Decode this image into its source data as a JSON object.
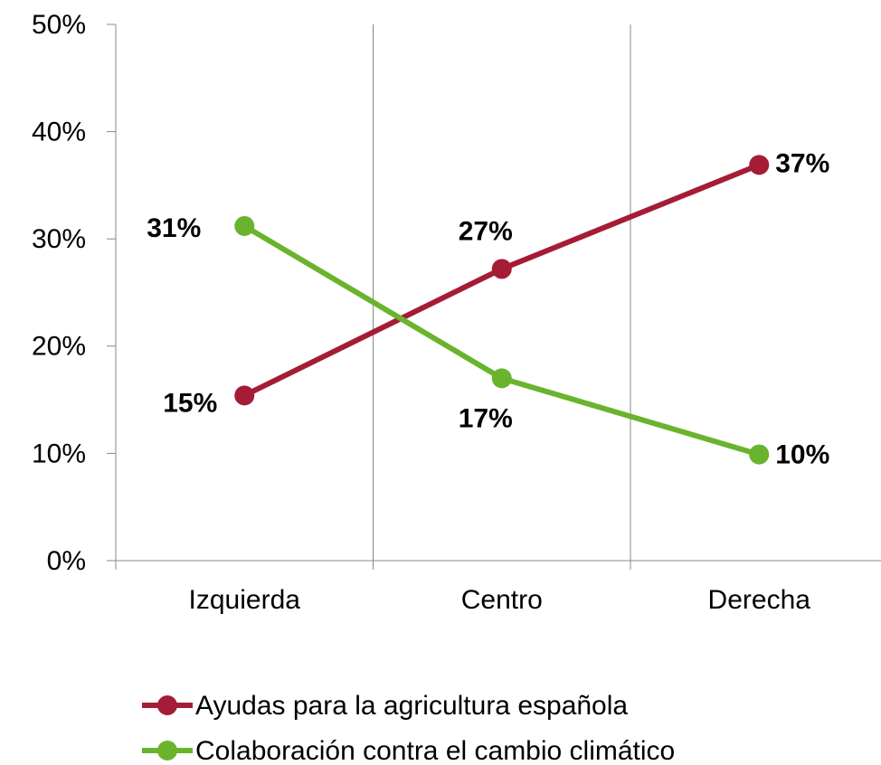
{
  "chart_data": {
    "type": "line",
    "categories": [
      "Izquierda",
      "Centro",
      "Derecha"
    ],
    "series": [
      {
        "name": "Ayudas para la agricultura española",
        "color": "#a51c36",
        "values": [
          15.4,
          27.2,
          36.9
        ],
        "value_labels": [
          "15%",
          "27%",
          "37%"
        ]
      },
      {
        "name": "Colaboración contra el cambio climático",
        "color": "#6ab42d",
        "values": [
          31.2,
          17.0,
          9.9
        ],
        "value_labels": [
          "31%",
          "17%",
          "10%"
        ]
      }
    ],
    "ylim": [
      0,
      50
    ],
    "yticks": [
      {
        "value": 0,
        "label": "0%"
      },
      {
        "value": 10,
        "label": "10%"
      },
      {
        "value": 20,
        "label": "20%"
      },
      {
        "value": 30,
        "label": "30%"
      },
      {
        "value": 40,
        "label": "40%"
      },
      {
        "value": 50,
        "label": "50%"
      }
    ],
    "legend": "bottom"
  }
}
